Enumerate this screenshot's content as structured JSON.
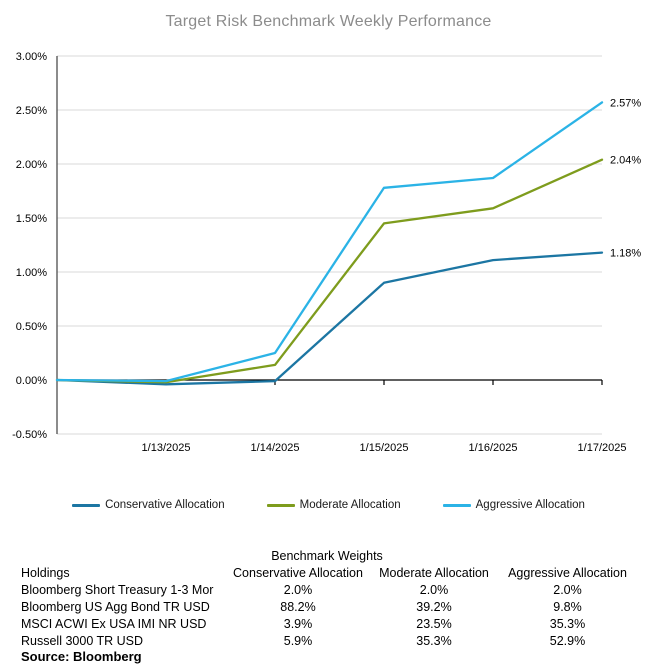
{
  "title": "Target Risk Benchmark Weekly Performance",
  "chart_data": {
    "type": "line",
    "title": "Target Risk Benchmark Weekly Performance",
    "categories": [
      "",
      "1/13/2025",
      "1/14/2025",
      "1/15/2025",
      "1/16/2025",
      "1/17/2025"
    ],
    "y_ticks": [
      3.0,
      2.5,
      2.0,
      1.5,
      1.0,
      0.5,
      0.0,
      -0.5
    ],
    "y_tick_labels": [
      "3.00%",
      "2.50%",
      "2.00%",
      "1.50%",
      "1.00%",
      "0.50%",
      "0.00%",
      "-0.50%"
    ],
    "ylim": [
      -0.5,
      3.0
    ],
    "grid": true,
    "legend_position": "bottom",
    "series": [
      {
        "name": "Conservative Allocation",
        "color": "#1C76A3",
        "values": [
          0.0,
          -0.04,
          -0.01,
          0.9,
          1.11,
          1.18
        ],
        "end_label": "1.18%"
      },
      {
        "name": "Moderate Allocation",
        "color": "#7E9C1D",
        "values": [
          0.0,
          -0.02,
          0.14,
          1.45,
          1.59,
          2.04
        ],
        "end_label": "2.04%"
      },
      {
        "name": "Aggressive Allocation",
        "color": "#2BB3E6",
        "values": [
          0.0,
          -0.01,
          0.25,
          1.78,
          1.87,
          2.57
        ],
        "end_label": "2.57%"
      }
    ]
  },
  "table": {
    "title": "Benchmark Weights",
    "columns": [
      "Holdings",
      "Conservative Allocation",
      "Moderate Allocation",
      "Aggressive Allocation"
    ],
    "rows": [
      [
        "Bloomberg Short Treasury 1-3 Mor",
        "2.0%",
        "2.0%",
        "2.0%"
      ],
      [
        "Bloomberg US Agg Bond TR USD",
        "88.2%",
        "39.2%",
        "9.8%"
      ],
      [
        "MSCI ACWI Ex USA IMI NR USD",
        "3.9%",
        "23.5%",
        "35.3%"
      ],
      [
        "Russell 3000 TR USD",
        "5.9%",
        "35.3%",
        "52.9%"
      ]
    ]
  },
  "source": "Source: Bloomberg",
  "colors": {
    "title": "#8C8C8C",
    "gridline": "#D9D9D9",
    "axis": "#000000",
    "yaxis": "#404040"
  }
}
